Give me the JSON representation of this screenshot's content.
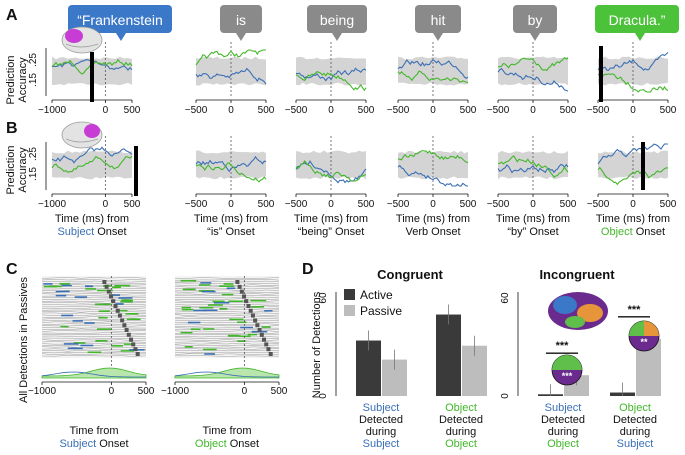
{
  "panel_letters": [
    "A",
    "B",
    "C",
    "D"
  ],
  "colors": {
    "subject_blue": "#3a6fb5",
    "object_green": "#42b72a",
    "bubble_blue": "#3b78c8",
    "bubble_gray": "#8a8a8a",
    "bubble_green": "#4cc23a",
    "band_gray": "#d4d4d4",
    "active_bar": "#3a3a3a",
    "passive_bar": "#bdbdbd",
    "brain_purple": "#c83cd6"
  },
  "sentence_words": [
    {
      "text": "“Frankenstein",
      "style": "subject"
    },
    {
      "text": "is",
      "style": "neutral"
    },
    {
      "text": "being",
      "style": "neutral"
    },
    {
      "text": "hit",
      "style": "neutral"
    },
    {
      "text": "by",
      "style": "neutral"
    },
    {
      "text": "Dracula.”",
      "style": "object"
    }
  ],
  "panel_ab": {
    "ylabel_line1": "Prediction",
    "ylabel_line2": "Accuracy",
    "ytick_top": ".25",
    "ytick_mid": ".15",
    "xticks_first": [
      "−1000",
      "0",
      "500"
    ],
    "xticks_other": [
      "−500",
      "0",
      "500"
    ],
    "xlabel_prefix": "Time (ms) from",
    "onsets": [
      {
        "word": "Subject",
        "suffix": " Onset",
        "style": "subject"
      },
      {
        "word": "“is”",
        "suffix": " Onset",
        "style": "plain"
      },
      {
        "word": "“being”",
        "suffix": " Onset",
        "style": "plain"
      },
      {
        "word": "Verb",
        "suffix": " Onset",
        "style": "plain"
      },
      {
        "word": "“by”",
        "suffix": " Onset",
        "style": "plain"
      },
      {
        "word": "Object",
        "suffix": " Onset",
        "style": "object"
      }
    ]
  },
  "panel_c": {
    "ylabel": "All Detections in Passives",
    "xticks": [
      "−1000",
      "0",
      "500"
    ],
    "xlabel_line1": "Time from",
    "left_onset": {
      "word": "Subject",
      "suffix": " Onset"
    },
    "right_onset": {
      "word": "Object",
      "suffix": " Onset"
    }
  },
  "chart_data": {
    "type": "bar",
    "ylabel": "Number of Detections",
    "ylim": [
      0,
      60
    ],
    "yticks": [
      "0",
      "60"
    ],
    "legend": [
      "Active",
      "Passive"
    ],
    "groups": [
      {
        "title": "Congruent",
        "categories": [
          {
            "label_word": "Subject",
            "label_rest": [
              "Detected",
              "during"
            ],
            "label_last": "Subject",
            "word_color": "subject",
            "last_color": "subject",
            "active": 32,
            "passive": 21
          },
          {
            "label_word": "Object",
            "label_rest": [
              "Detected",
              "during"
            ],
            "label_last": "Object",
            "word_color": "object",
            "last_color": "object",
            "active": 47,
            "passive": 29
          }
        ]
      },
      {
        "title": "Incongruent",
        "categories": [
          {
            "label_word": "Subject",
            "label_rest": [
              "Detected",
              "during"
            ],
            "label_last": "Object",
            "word_color": "subject",
            "last_color": "object",
            "active": 1,
            "passive": 12,
            "significance": "***"
          },
          {
            "label_word": "Object",
            "label_rest": [
              "Detected",
              "during"
            ],
            "label_last": "Subject",
            "word_color": "object",
            "last_color": "subject",
            "active": 2,
            "passive": 33,
            "significance": "***"
          }
        ]
      }
    ],
    "inset_pie_labels": [
      "***",
      "**"
    ]
  }
}
